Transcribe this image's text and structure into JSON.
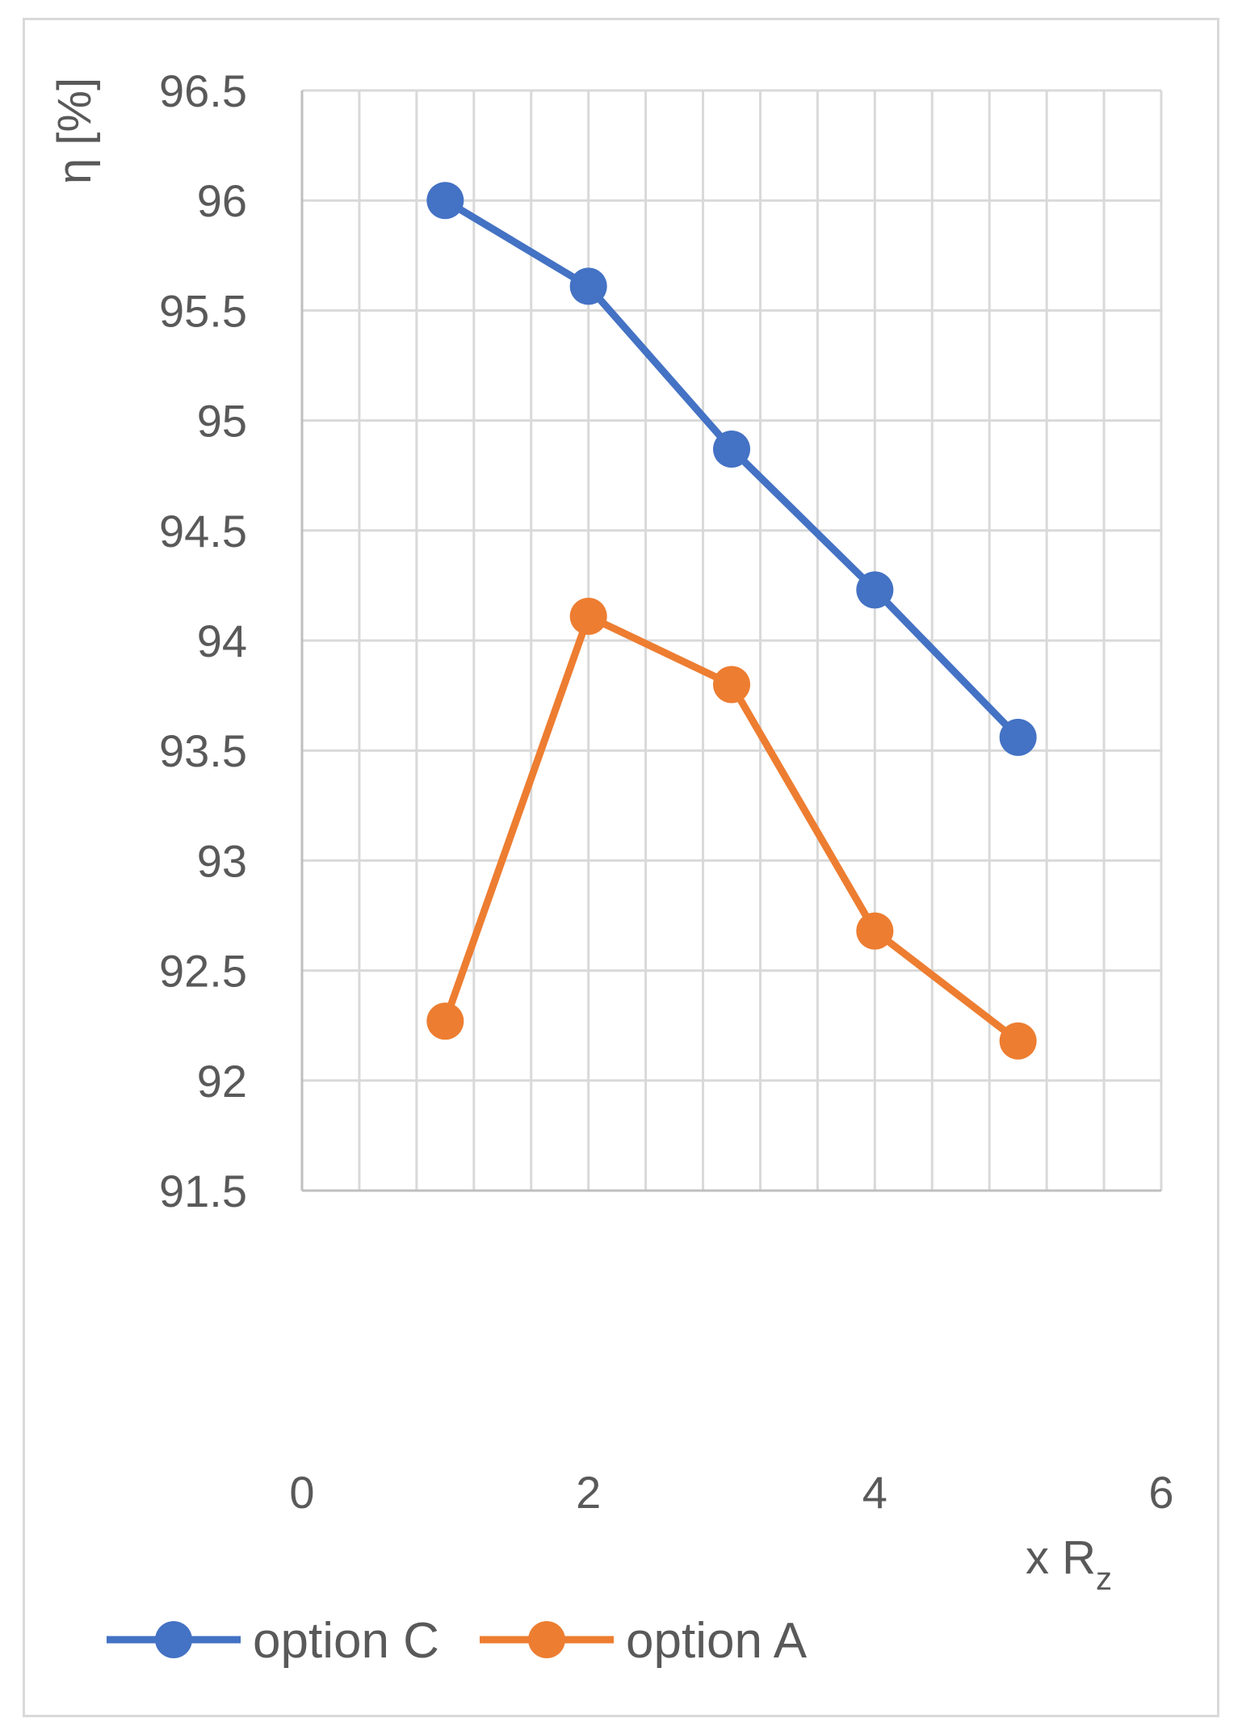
{
  "chart_data": {
    "type": "scatter",
    "title": "",
    "xlabel": "x R",
    "xlabel_sub": "z",
    "ylabel": "η [%]",
    "xlim": [
      0,
      6
    ],
    "ylim": [
      91.5,
      96.5
    ],
    "x_major_ticks": [
      0,
      2,
      4,
      6
    ],
    "x_minor_step": 0.4,
    "y_ticks": [
      91.5,
      92,
      92.5,
      93,
      93.5,
      94,
      94.5,
      95,
      95.5,
      96,
      96.5
    ],
    "y_tick_labels": [
      "91.5",
      "92",
      "92.5",
      "93",
      "93.5",
      "94",
      "94.5",
      "95",
      "95.5",
      "96",
      "96.5"
    ],
    "x_tick_labels": [
      "0",
      "2",
      "4",
      "6"
    ],
    "grid": true,
    "legend_position": "bottom",
    "series": [
      {
        "name": "option C",
        "color": "#4472c4",
        "x": [
          1,
          2,
          3,
          4,
          5
        ],
        "y": [
          96.0,
          95.61,
          94.87,
          94.23,
          93.56
        ]
      },
      {
        "name": "option A",
        "color": "#ed7d31",
        "x": [
          1,
          2,
          3,
          4,
          5
        ],
        "y": [
          92.27,
          94.11,
          93.8,
          92.68,
          92.18
        ]
      }
    ]
  }
}
